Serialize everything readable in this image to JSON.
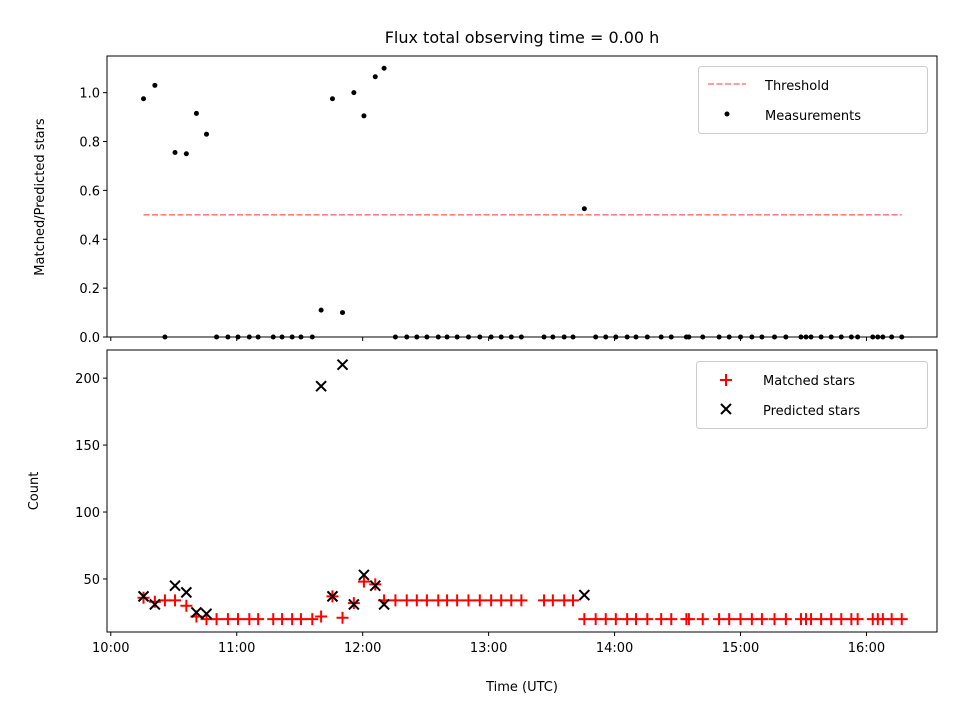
{
  "chart_data": [
    {
      "type": "scatter",
      "title": "Flux total observing time = 0.00 h",
      "xlabel": "",
      "ylabel": "Matched/Predicted stars",
      "xlim": [
        9.97,
        16.56
      ],
      "ylim": [
        0,
        1.15
      ],
      "yticks": [
        0.0,
        0.2,
        0.4,
        0.6,
        0.8,
        1.0
      ],
      "ytick_labels": [
        "0.0",
        "0.2",
        "0.4",
        "0.6",
        "0.8",
        "1.0"
      ],
      "legend": {
        "placement": "top-right",
        "entries": [
          "Threshold",
          "Measurements"
        ]
      },
      "threshold": {
        "name": "Threshold",
        "value": 0.5,
        "x_range": [
          10.26,
          16.28
        ],
        "color": "#ff7f7f"
      },
      "series": [
        {
          "name": "Measurements",
          "color": "#000000",
          "x": [
            10.26,
            10.35,
            10.43,
            10.51,
            10.6,
            10.68,
            10.76,
            10.84,
            10.93,
            11.01,
            11.1,
            11.17,
            11.29,
            11.36,
            11.44,
            11.51,
            11.6,
            11.67,
            11.76,
            11.84,
            11.93,
            12.01,
            12.1,
            12.17,
            12.26,
            12.35,
            12.43,
            12.51,
            12.6,
            12.67,
            12.75,
            12.84,
            12.93,
            13.02,
            13.1,
            13.18,
            13.26,
            13.44,
            13.51,
            13.6,
            13.67,
            13.76,
            13.85,
            13.93,
            14.01,
            14.1,
            14.17,
            14.26,
            14.37,
            14.45,
            14.57,
            14.59,
            14.7,
            14.83,
            14.91,
            15.0,
            15.09,
            15.17,
            15.27,
            15.36,
            15.48,
            15.52,
            15.56,
            15.64,
            15.72,
            15.8,
            15.88,
            15.93,
            16.05,
            16.09,
            16.13,
            16.2,
            16.28
          ],
          "y": [
            0.975,
            1.03,
            0,
            0.755,
            0.75,
            0.915,
            0.83,
            0,
            0,
            0,
            0,
            0,
            0,
            0,
            0,
            0,
            0,
            0.11,
            0.975,
            0.1,
            1.0,
            0.905,
            1.065,
            1.1,
            0,
            0,
            0,
            0,
            0,
            0,
            0,
            0,
            0,
            0,
            0,
            0,
            0,
            0,
            0,
            0,
            0,
            0.525,
            0,
            0,
            0,
            0,
            0,
            0,
            0,
            0,
            0,
            0,
            0,
            0,
            0,
            0,
            0,
            0,
            0,
            0,
            0,
            0,
            0,
            0,
            0,
            0,
            0,
            0,
            0,
            0,
            0,
            0,
            0
          ]
        }
      ]
    },
    {
      "type": "scatter",
      "title": "",
      "xlabel": "Time (UTC)",
      "ylabel": "Count",
      "xlim": [
        9.97,
        16.56
      ],
      "ylim": [
        10.4,
        221
      ],
      "yticks": [
        50,
        100,
        150,
        200
      ],
      "ytick_labels": [
        "50",
        "100",
        "150",
        "200"
      ],
      "xticks": [
        10,
        11,
        12,
        13,
        14,
        15,
        16
      ],
      "xtick_labels": [
        "10:00",
        "11:00",
        "12:00",
        "13:00",
        "14:00",
        "15:00",
        "16:00"
      ],
      "legend": {
        "placement": "top-right",
        "entries": [
          "Matched stars",
          "Predicted stars"
        ]
      },
      "series": [
        {
          "name": "Matched stars",
          "marker": "+",
          "color": "#ff0000",
          "x": [
            10.26,
            10.35,
            10.43,
            10.51,
            10.6,
            10.68,
            10.76,
            10.84,
            10.93,
            11.01,
            11.1,
            11.17,
            11.29,
            11.36,
            11.44,
            11.51,
            11.6,
            11.67,
            11.76,
            11.84,
            11.93,
            12.01,
            12.1,
            12.17,
            12.26,
            12.35,
            12.43,
            12.51,
            12.6,
            12.67,
            12.75,
            12.84,
            12.93,
            13.02,
            13.1,
            13.18,
            13.26,
            13.44,
            13.51,
            13.6,
            13.67,
            13.76,
            13.85,
            13.93,
            14.01,
            14.1,
            14.17,
            14.26,
            14.37,
            14.45,
            14.57,
            14.59,
            14.7,
            14.83,
            14.91,
            15.0,
            15.09,
            15.17,
            15.27,
            15.36,
            15.48,
            15.52,
            15.56,
            15.64,
            15.72,
            15.8,
            15.88,
            15.93,
            16.05,
            16.09,
            16.13,
            16.2,
            16.28
          ],
          "y": [
            36,
            33,
            34,
            34,
            30,
            22,
            20,
            20,
            20,
            20,
            20,
            20,
            20,
            20,
            20,
            20,
            20,
            22,
            37,
            21,
            32,
            48,
            46,
            34,
            34,
            34,
            34,
            34,
            34,
            34,
            34,
            34,
            34,
            34,
            34,
            34,
            34,
            34,
            34,
            34,
            34,
            20,
            20,
            20,
            20,
            20,
            20,
            20,
            20,
            20,
            20,
            20,
            20,
            20,
            20,
            20,
            20,
            20,
            20,
            20,
            20,
            20,
            20,
            20,
            20,
            20,
            20,
            20,
            20,
            20,
            20,
            20,
            20
          ]
        },
        {
          "name": "Predicted stars",
          "marker": "x",
          "color": "#000000",
          "x": [
            10.26,
            10.35,
            10.51,
            10.6,
            10.68,
            10.76,
            11.67,
            11.76,
            11.84,
            11.93,
            12.01,
            12.1,
            12.17,
            13.76
          ],
          "y": [
            37,
            31,
            45,
            40,
            25,
            24,
            194,
            37,
            210,
            31,
            53,
            45,
            31,
            38
          ]
        }
      ]
    }
  ]
}
